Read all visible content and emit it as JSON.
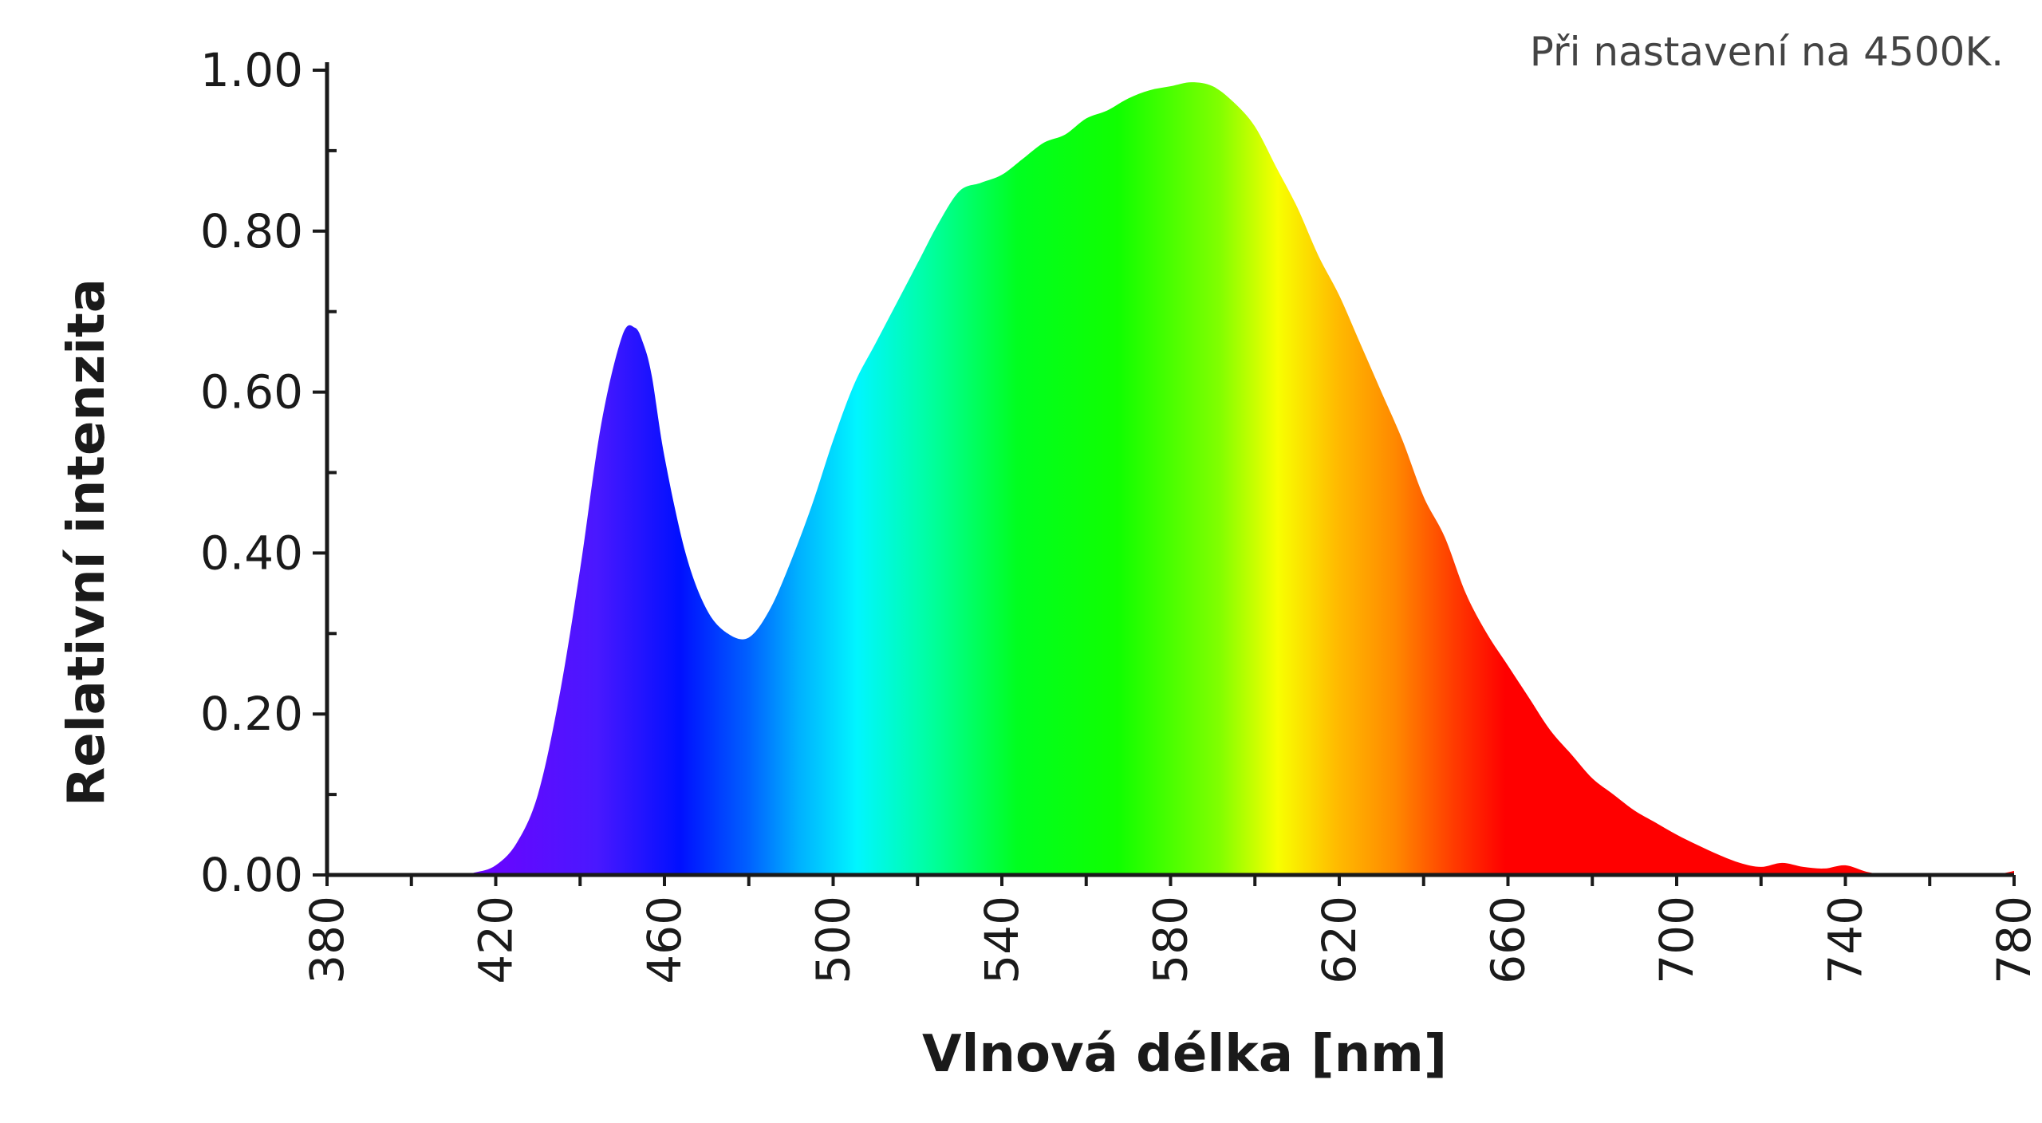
{
  "chart_data": {
    "type": "area",
    "title": "",
    "annotation": "Při nastavení na 4500K.",
    "xlabel": "Vlnová délka [nm]",
    "ylabel": "Relativní intenzita",
    "xlim": [
      380,
      780
    ],
    "ylim": [
      0,
      1
    ],
    "x_ticks": [
      "380",
      "420",
      "460",
      "500",
      "540",
      "580",
      "620",
      "660",
      "700",
      "740",
      "780"
    ],
    "y_ticks": [
      "0.00",
      "0.20",
      "0.40",
      "0.60",
      "0.80",
      "1.00"
    ],
    "fill": "visible spectrum gradient (violet → blue → cyan → green → yellow → orange → red)",
    "grid": false,
    "series": [
      {
        "x": [
          380,
          410,
          415,
          420,
          425,
          430,
          435,
          440,
          445,
          450,
          453,
          455,
          457,
          460,
          465,
          470,
          475,
          480,
          485,
          490,
          495,
          500,
          505,
          510,
          515,
          520,
          525,
          530,
          535,
          540,
          545,
          550,
          555,
          560,
          565,
          570,
          575,
          580,
          585,
          590,
          595,
          600,
          605,
          610,
          615,
          620,
          625,
          630,
          635,
          640,
          645,
          650,
          655,
          660,
          665,
          670,
          675,
          680,
          685,
          690,
          695,
          700,
          705,
          710,
          715,
          720,
          725,
          730,
          735,
          740,
          745,
          750,
          755,
          760,
          765,
          770,
          775,
          780
        ],
        "values": [
          0.0,
          0.0,
          0.003,
          0.012,
          0.04,
          0.1,
          0.22,
          0.38,
          0.56,
          0.67,
          0.68,
          0.66,
          0.62,
          0.52,
          0.4,
          0.33,
          0.3,
          0.295,
          0.33,
          0.39,
          0.46,
          0.54,
          0.61,
          0.66,
          0.71,
          0.76,
          0.81,
          0.85,
          0.86,
          0.87,
          0.89,
          0.91,
          0.92,
          0.94,
          0.95,
          0.965,
          0.975,
          0.98,
          0.985,
          0.98,
          0.96,
          0.93,
          0.88,
          0.83,
          0.77,
          0.72,
          0.66,
          0.6,
          0.54,
          0.47,
          0.42,
          0.35,
          0.3,
          0.26,
          0.22,
          0.18,
          0.15,
          0.12,
          0.1,
          0.08,
          0.065,
          0.05,
          0.037,
          0.025,
          0.015,
          0.01,
          0.015,
          0.01,
          0.008,
          0.012,
          0.004,
          0.0,
          0.002,
          0.0,
          0.0,
          0.0,
          0.0,
          0.005
        ]
      }
    ]
  }
}
